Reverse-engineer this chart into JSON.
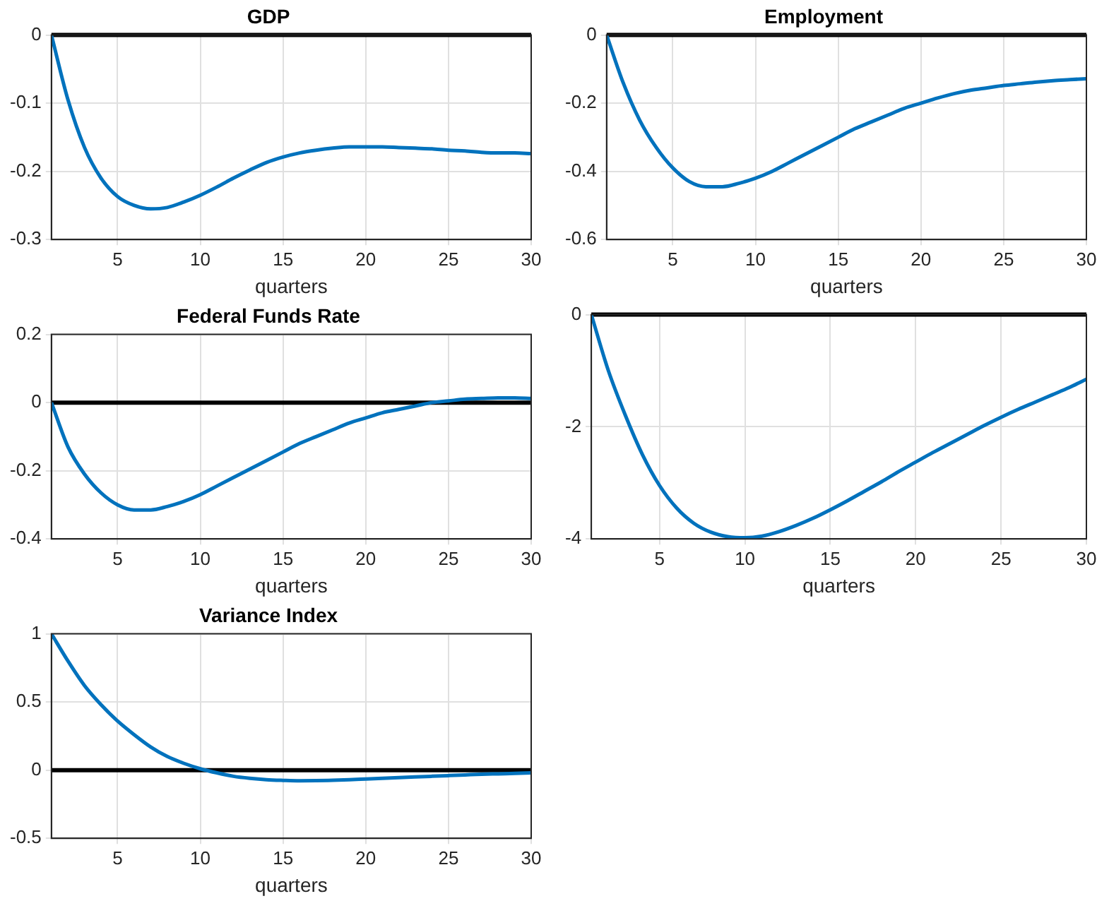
{
  "chart_data": [
    {
      "type": "line",
      "title": "GDP",
      "xlabel": "quarters",
      "x": [
        1,
        2,
        3,
        4,
        5,
        6,
        7,
        8,
        9,
        10,
        11,
        12,
        13,
        14,
        15,
        16,
        17,
        18,
        19,
        20,
        21,
        22,
        23,
        24,
        25,
        26,
        27,
        28,
        29,
        30
      ],
      "series": [
        {
          "color": "#0072bd",
          "values": [
            0,
            -0.095,
            -0.165,
            -0.21,
            -0.237,
            -0.25,
            -0.255,
            -0.253,
            -0.245,
            -0.235,
            -0.223,
            -0.21,
            -0.198,
            -0.187,
            -0.179,
            -0.173,
            -0.169,
            -0.166,
            -0.164,
            -0.164,
            -0.164,
            -0.165,
            -0.166,
            -0.167,
            -0.169,
            -0.17,
            -0.172,
            -0.173,
            -0.173,
            -0.174
          ]
        }
      ],
      "xlim": [
        1,
        30
      ],
      "xticks": [
        5,
        10,
        15,
        20,
        25,
        30
      ],
      "ylim": [
        -0.3,
        0
      ],
      "yticks": [
        -0.3,
        -0.2,
        -0.1,
        0
      ],
      "grid": true,
      "ref_lines": [
        {
          "axis": "y",
          "value": 0,
          "color": "#000000"
        }
      ]
    },
    {
      "type": "line",
      "title": "Employment",
      "xlabel": "quarters",
      "x": [
        1,
        2,
        3,
        4,
        5,
        6,
        7,
        8,
        9,
        10,
        11,
        12,
        13,
        14,
        15,
        16,
        17,
        18,
        19,
        20,
        21,
        22,
        23,
        24,
        25,
        26,
        27,
        28,
        29,
        30
      ],
      "series": [
        {
          "color": "#0072bd",
          "values": [
            0,
            -0.14,
            -0.25,
            -0.33,
            -0.39,
            -0.43,
            -0.445,
            -0.445,
            -0.435,
            -0.42,
            -0.4,
            -0.375,
            -0.35,
            -0.325,
            -0.3,
            -0.275,
            -0.255,
            -0.235,
            -0.215,
            -0.2,
            -0.185,
            -0.172,
            -0.162,
            -0.155,
            -0.148,
            -0.143,
            -0.138,
            -0.134,
            -0.131,
            -0.128
          ]
        }
      ],
      "xlim": [
        1,
        30
      ],
      "xticks": [
        5,
        10,
        15,
        20,
        25,
        30
      ],
      "ylim": [
        -0.6,
        0
      ],
      "yticks": [
        -0.6,
        -0.4,
        -0.2,
        0
      ],
      "grid": true,
      "ref_lines": [
        {
          "axis": "y",
          "value": 0,
          "color": "#000000"
        }
      ]
    },
    {
      "type": "line",
      "title": "Federal Funds Rate",
      "xlabel": "quarters",
      "x": [
        1,
        2,
        3,
        4,
        5,
        6,
        7,
        8,
        9,
        10,
        11,
        12,
        13,
        14,
        15,
        16,
        17,
        18,
        19,
        20,
        21,
        22,
        23,
        24,
        25,
        26,
        27,
        28,
        29,
        30
      ],
      "series": [
        {
          "color": "#0072bd",
          "values": [
            0,
            -0.13,
            -0.21,
            -0.265,
            -0.3,
            -0.315,
            -0.315,
            -0.305,
            -0.29,
            -0.27,
            -0.245,
            -0.22,
            -0.195,
            -0.17,
            -0.145,
            -0.12,
            -0.1,
            -0.08,
            -0.06,
            -0.045,
            -0.03,
            -0.02,
            -0.01,
            0,
            0.005,
            0.01,
            0.012,
            0.014,
            0.014,
            0.012
          ]
        }
      ],
      "xlim": [
        1,
        30
      ],
      "xticks": [
        5,
        10,
        15,
        20,
        25,
        30
      ],
      "ylim": [
        -0.4,
        0.2
      ],
      "yticks": [
        -0.4,
        -0.2,
        0,
        0.2
      ],
      "grid": true,
      "ref_lines": [
        {
          "axis": "y",
          "value": 0,
          "color": "#000000"
        }
      ]
    },
    {
      "type": "line",
      "xlabel": "quarters",
      "x": [
        1,
        2,
        3,
        4,
        5,
        6,
        7,
        8,
        9,
        10,
        11,
        12,
        13,
        14,
        15,
        16,
        17,
        18,
        19,
        20,
        21,
        22,
        23,
        24,
        25,
        26,
        27,
        28,
        29,
        30
      ],
      "series": [
        {
          "color": "#0072bd",
          "values": [
            0,
            -1.0,
            -1.8,
            -2.5,
            -3.05,
            -3.45,
            -3.72,
            -3.88,
            -3.96,
            -3.98,
            -3.95,
            -3.87,
            -3.76,
            -3.63,
            -3.48,
            -3.32,
            -3.15,
            -2.98,
            -2.8,
            -2.63,
            -2.46,
            -2.3,
            -2.14,
            -1.98,
            -1.83,
            -1.69,
            -1.56,
            -1.43,
            -1.3,
            -1.15
          ]
        }
      ],
      "xlim": [
        1,
        30
      ],
      "xticks": [
        5,
        10,
        15,
        20,
        25,
        30
      ],
      "ylim": [
        -4,
        0
      ],
      "yticks": [
        -4,
        -2,
        0
      ],
      "grid": true,
      "ref_lines": [
        {
          "axis": "y",
          "value": 0,
          "color": "#000000"
        }
      ]
    },
    {
      "type": "line",
      "title": "Variance Index",
      "xlabel": "quarters",
      "x": [
        1,
        2,
        3,
        4,
        5,
        6,
        7,
        8,
        9,
        10,
        11,
        12,
        13,
        14,
        15,
        16,
        17,
        18,
        19,
        20,
        21,
        22,
        23,
        24,
        25,
        26,
        27,
        28,
        29,
        30
      ],
      "series": [
        {
          "color": "#0072bd",
          "values": [
            1,
            0.8,
            0.62,
            0.48,
            0.36,
            0.26,
            0.17,
            0.1,
            0.05,
            0.01,
            -0.02,
            -0.045,
            -0.06,
            -0.07,
            -0.075,
            -0.078,
            -0.077,
            -0.074,
            -0.07,
            -0.065,
            -0.06,
            -0.055,
            -0.05,
            -0.045,
            -0.04,
            -0.035,
            -0.03,
            -0.027,
            -0.024,
            -0.02
          ]
        }
      ],
      "xlim": [
        1,
        30
      ],
      "xticks": [
        5,
        10,
        15,
        20,
        25,
        30
      ],
      "ylim": [
        -0.5,
        1
      ],
      "yticks": [
        -0.5,
        0,
        0.5,
        1
      ],
      "grid": true,
      "ref_lines": [
        {
          "axis": "y",
          "value": 0,
          "color": "#000000"
        }
      ]
    }
  ]
}
